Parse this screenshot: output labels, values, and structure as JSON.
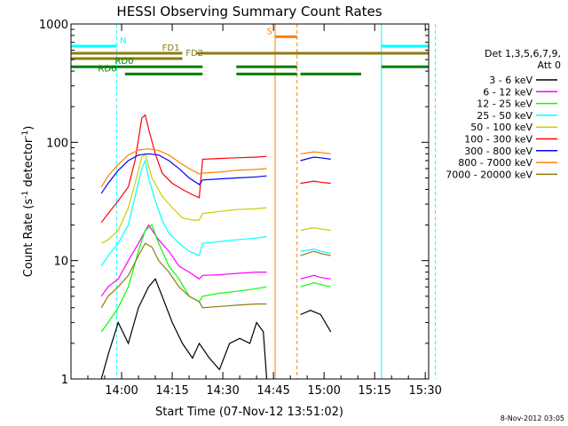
{
  "chart_data": {
    "type": "line",
    "title": "HESSI Observing Summary Count Rates",
    "xlabel": "Start Time (07-Nov-12 13:51:02)",
    "ylabel_main": "Count Rate (s",
    "ylabel_sup1": "-1",
    "ylabel_mid": " detector",
    "ylabel_sup2": "-1",
    "ylabel_end": ")",
    "timestamp": "8-Nov-2012 03:05",
    "y_scale": "log",
    "ylim": [
      1,
      1000
    ],
    "xlim_minutes": [
      -6,
      100
    ],
    "x_ticks": [
      {
        "m": 9,
        "label": "14:00"
      },
      {
        "m": 24,
        "label": "14:15"
      },
      {
        "m": 39,
        "label": "14:30"
      },
      {
        "m": 54,
        "label": "14:45"
      },
      {
        "m": 69,
        "label": "15:00"
      },
      {
        "m": 84,
        "label": "15:15"
      },
      {
        "m": 99,
        "label": "15:30"
      }
    ],
    "y_ticks": [
      {
        "v": 1,
        "label": "1"
      },
      {
        "v": 10,
        "label": "10"
      },
      {
        "v": 100,
        "label": "100"
      },
      {
        "v": 1000,
        "label": "1000"
      }
    ],
    "legend": {
      "header1": "Det 1,3,5,6,7,9,",
      "header2": "Att 0",
      "position": "right"
    },
    "series": [
      {
        "name": "3 - 6 keV",
        "color": "#000000",
        "points": [
          [
            3,
            1
          ],
          [
            5,
            1.6
          ],
          [
            8,
            3
          ],
          [
            11,
            2
          ],
          [
            14,
            4
          ],
          [
            17,
            6
          ],
          [
            19,
            7
          ],
          [
            21,
            5
          ],
          [
            24,
            3
          ],
          [
            27,
            2
          ],
          [
            30,
            1.5
          ],
          [
            32,
            2
          ],
          [
            35,
            1.5
          ],
          [
            38,
            1.2
          ],
          [
            41,
            2
          ],
          [
            44,
            2.2
          ],
          [
            47,
            2
          ],
          [
            49,
            3
          ],
          [
            51,
            2.5
          ],
          [
            52,
            1
          ],
          null,
          [
            62,
            3.5
          ],
          [
            65,
            3.8
          ],
          [
            68,
            3.5
          ],
          [
            71,
            2.5
          ]
        ]
      },
      {
        "name": "6 - 12 keV",
        "color": "#ff00ff",
        "points": [
          [
            3,
            5
          ],
          [
            5,
            6
          ],
          [
            8,
            7
          ],
          [
            11,
            10
          ],
          [
            14,
            14
          ],
          [
            17,
            20
          ],
          [
            20,
            15
          ],
          [
            23,
            12
          ],
          [
            26,
            9
          ],
          [
            29,
            8
          ],
          [
            32,
            7
          ],
          [
            33,
            7.5
          ],
          [
            38,
            7.6
          ],
          [
            43,
            7.8
          ],
          [
            49,
            8
          ],
          [
            52,
            8
          ],
          null,
          [
            62,
            7
          ],
          [
            66,
            7.5
          ],
          [
            68,
            7.2
          ],
          [
            71,
            7
          ]
        ]
      },
      {
        "name": "12 - 25 keV",
        "color": "#00ff00",
        "points": [
          [
            3,
            2.5
          ],
          [
            5,
            3
          ],
          [
            8,
            4
          ],
          [
            11,
            6
          ],
          [
            14,
            12
          ],
          [
            16,
            18
          ],
          [
            18,
            20
          ],
          [
            20,
            14
          ],
          [
            23,
            9
          ],
          [
            26,
            7
          ],
          [
            29,
            5
          ],
          [
            32,
            4.5
          ],
          [
            33,
            5
          ],
          [
            38,
            5.3
          ],
          [
            43,
            5.5
          ],
          [
            49,
            5.8
          ],
          [
            52,
            6
          ],
          null,
          [
            62,
            6
          ],
          [
            66,
            6.5
          ],
          [
            68,
            6.3
          ],
          [
            71,
            6
          ]
        ]
      },
      {
        "name": "25 - 50 keV",
        "color": "#00ffff",
        "points": [
          [
            3,
            9
          ],
          [
            5,
            11
          ],
          [
            8,
            14
          ],
          [
            11,
            20
          ],
          [
            13,
            35
          ],
          [
            15,
            60
          ],
          [
            16,
            70
          ],
          [
            17,
            50
          ],
          [
            19,
            32
          ],
          [
            21,
            22
          ],
          [
            23,
            17
          ],
          [
            26,
            14
          ],
          [
            29,
            12
          ],
          [
            32,
            11
          ],
          [
            33,
            14
          ],
          [
            38,
            14.5
          ],
          [
            43,
            15
          ],
          [
            49,
            15.5
          ],
          [
            52,
            16
          ],
          null,
          [
            62,
            12
          ],
          [
            66,
            12.5
          ],
          [
            68,
            12
          ],
          [
            71,
            11.5
          ]
        ]
      },
      {
        "name": "50 - 100 keV",
        "color": "#cccc00",
        "points": [
          [
            3,
            14
          ],
          [
            5,
            15
          ],
          [
            8,
            18
          ],
          [
            11,
            28
          ],
          [
            13,
            45
          ],
          [
            15,
            75
          ],
          [
            16,
            80
          ],
          [
            18,
            50
          ],
          [
            21,
            35
          ],
          [
            24,
            28
          ],
          [
            27,
            23
          ],
          [
            30,
            22
          ],
          [
            32,
            22
          ],
          [
            33,
            25
          ],
          [
            38,
            26
          ],
          [
            43,
            27
          ],
          [
            49,
            27.5
          ],
          [
            52,
            28
          ],
          null,
          [
            62,
            18
          ],
          [
            66,
            19
          ],
          [
            68,
            18.5
          ],
          [
            71,
            18
          ]
        ]
      },
      {
        "name": "100 - 300 keV",
        "color": "#ff0000",
        "points": [
          [
            3,
            21
          ],
          [
            5,
            25
          ],
          [
            8,
            32
          ],
          [
            11,
            42
          ],
          [
            13,
            70
          ],
          [
            15,
            160
          ],
          [
            16,
            170
          ],
          [
            17,
            130
          ],
          [
            19,
            80
          ],
          [
            21,
            55
          ],
          [
            24,
            45
          ],
          [
            27,
            40
          ],
          [
            30,
            36
          ],
          [
            32,
            34
          ],
          [
            33,
            72
          ],
          [
            38,
            73
          ],
          [
            43,
            74
          ],
          [
            49,
            75
          ],
          [
            52,
            76
          ],
          null,
          [
            62,
            45
          ],
          [
            66,
            47
          ],
          [
            68,
            46
          ],
          [
            71,
            45
          ]
        ]
      },
      {
        "name": "300 - 800 keV",
        "color": "#0000ff",
        "points": [
          [
            3,
            37
          ],
          [
            5,
            45
          ],
          [
            8,
            58
          ],
          [
            11,
            70
          ],
          [
            14,
            78
          ],
          [
            17,
            80
          ],
          [
            20,
            78
          ],
          [
            23,
            70
          ],
          [
            26,
            60
          ],
          [
            29,
            50
          ],
          [
            32,
            44
          ],
          [
            33,
            48
          ],
          [
            38,
            49
          ],
          [
            43,
            50
          ],
          [
            49,
            51
          ],
          [
            52,
            52
          ],
          null,
          [
            62,
            70
          ],
          [
            66,
            75
          ],
          [
            68,
            74
          ],
          [
            71,
            72
          ]
        ]
      },
      {
        "name": "800 - 7000 keV",
        "color": "#ff8000",
        "points": [
          [
            3,
            42
          ],
          [
            5,
            52
          ],
          [
            8,
            65
          ],
          [
            11,
            78
          ],
          [
            14,
            86
          ],
          [
            17,
            88
          ],
          [
            20,
            85
          ],
          [
            23,
            78
          ],
          [
            26,
            68
          ],
          [
            29,
            60
          ],
          [
            32,
            54
          ],
          [
            33,
            55
          ],
          [
            38,
            56
          ],
          [
            43,
            58
          ],
          [
            49,
            59
          ],
          [
            52,
            60
          ],
          null,
          [
            62,
            80
          ],
          [
            66,
            83
          ],
          [
            68,
            82
          ],
          [
            71,
            80
          ]
        ]
      },
      {
        "name": "7000 - 20000 keV",
        "color": "#8b7d10",
        "points": [
          [
            3,
            4
          ],
          [
            5,
            5
          ],
          [
            8,
            6
          ],
          [
            11,
            7.5
          ],
          [
            14,
            11
          ],
          [
            16,
            14
          ],
          [
            18,
            13
          ],
          [
            20,
            10
          ],
          [
            23,
            8
          ],
          [
            26,
            6
          ],
          [
            29,
            5
          ],
          [
            32,
            4.5
          ],
          [
            33,
            4
          ],
          [
            38,
            4.1
          ],
          [
            43,
            4.2
          ],
          [
            49,
            4.3
          ],
          [
            52,
            4.3
          ],
          null,
          [
            62,
            11
          ],
          [
            66,
            12
          ],
          [
            68,
            11.5
          ],
          [
            71,
            11
          ]
        ]
      }
    ],
    "vertical_markers": [
      {
        "name": "saa-start",
        "m": -6,
        "color": "#00ffff",
        "style": "solid"
      },
      {
        "name": "night-end",
        "m": 7.5,
        "color": "#00ffff",
        "style": "dashed"
      },
      {
        "name": "saa-line",
        "m": 54.5,
        "color": "#ff8000",
        "style": "solid"
      },
      {
        "name": "saa-end",
        "m": 61,
        "color": "#ff8000",
        "style": "dashed"
      },
      {
        "name": "night-start2",
        "m": 86,
        "color": "#00ffff",
        "style": "solid"
      },
      {
        "name": "night-end2",
        "m": 102,
        "color": "#00ffff",
        "style": "dashed"
      }
    ],
    "flag_bars": [
      {
        "label": "N",
        "color": "#00ffff",
        "y": 650,
        "segments": [
          [
            -6,
            7.5
          ],
          [
            86,
            104
          ]
        ],
        "label_m": 8.5
      },
      {
        "label": "S",
        "color": "#ff8000",
        "y": 780,
        "segments": [
          [
            54.5,
            61
          ]
        ],
        "label_m": 52
      },
      {
        "label": "FD1",
        "color": "#8b7d10",
        "y": 565,
        "segments": [
          [
            -6,
            27
          ],
          [
            31,
            104
          ]
        ],
        "label_m": 21
      },
      {
        "label": "FD2",
        "color": "#8b7d10",
        "y": 510,
        "segments": [
          [
            -6,
            27
          ]
        ],
        "label_m": 28
      },
      {
        "label": "RD0",
        "color": "#008000",
        "y": 435,
        "segments": [
          [
            -6,
            33
          ],
          [
            43,
            61
          ],
          [
            86,
            104
          ]
        ],
        "label_m": 7
      },
      {
        "label": "RD6",
        "color": "#008000",
        "y": 378,
        "segments": [
          [
            10,
            33
          ],
          [
            43,
            61
          ],
          [
            62,
            80
          ]
        ],
        "label_m": 2
      }
    ]
  }
}
